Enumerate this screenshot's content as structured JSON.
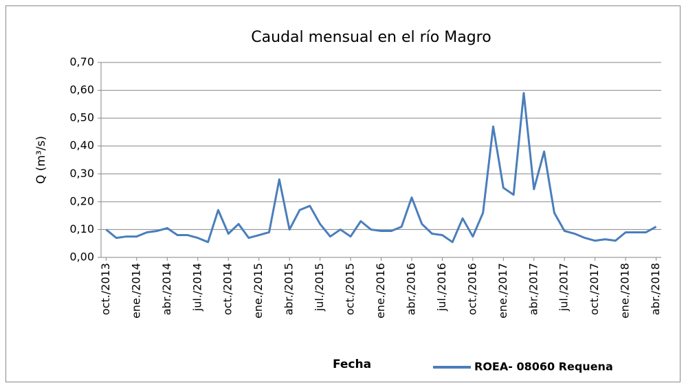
{
  "chart_data": {
    "type": "line",
    "title": "Caudal mensual en el río Magro",
    "x_label": "Fecha",
    "y_label": "Q (m³/s)",
    "categories": [
      "oct./2013",
      null,
      null,
      "ene./2014",
      null,
      null,
      "abr./2014",
      null,
      null,
      "jul./2014",
      null,
      null,
      "oct./2014",
      null,
      null,
      "ene./2015",
      null,
      null,
      "abr./2015",
      null,
      null,
      "jul./2015",
      null,
      null,
      "oct./2015",
      null,
      null,
      "ene./2016",
      null,
      null,
      "abr./2016",
      null,
      null,
      "jul./2016",
      null,
      null,
      "oct./2016",
      null,
      null,
      "ene./2017",
      null,
      null,
      "abr./2017",
      null,
      null,
      "jul./2017",
      null,
      null,
      "oct./2017",
      null,
      null,
      "ene./2018",
      null,
      null,
      "abr./2018"
    ],
    "series": [
      {
        "name": "ROEA- 08060 Requena",
        "color": "#4a7ebb",
        "values": [
          0.1,
          0.07,
          0.075,
          0.075,
          0.09,
          0.095,
          0.105,
          0.08,
          0.08,
          0.07,
          0.055,
          0.17,
          0.085,
          0.12,
          0.07,
          0.08,
          0.09,
          0.28,
          0.1,
          0.17,
          0.185,
          0.12,
          0.075,
          0.1,
          0.075,
          0.13,
          0.1,
          0.095,
          0.095,
          0.11,
          0.215,
          0.12,
          0.085,
          0.08,
          0.055,
          0.14,
          0.075,
          0.16,
          0.47,
          0.25,
          0.225,
          0.59,
          0.245,
          0.38,
          0.16,
          0.095,
          0.085,
          0.07,
          0.06,
          0.065,
          0.06,
          0.09,
          0.09,
          0.09,
          0.11
        ]
      }
    ],
    "ylim": [
      0,
      0.7
    ],
    "yticks": [
      {
        "value": 0,
        "label": "0,00"
      },
      {
        "value": 0.1,
        "label": "0,10"
      },
      {
        "value": 0.2,
        "label": "0,20"
      },
      {
        "value": 0.3,
        "label": "0,30"
      },
      {
        "value": 0.4,
        "label": "0,40"
      },
      {
        "value": 0.5,
        "label": "0,50"
      },
      {
        "value": 0.6,
        "label": "0,60"
      },
      {
        "value": 0.7,
        "label": "0,70"
      }
    ],
    "grid": true,
    "legend": "bottom-right"
  }
}
